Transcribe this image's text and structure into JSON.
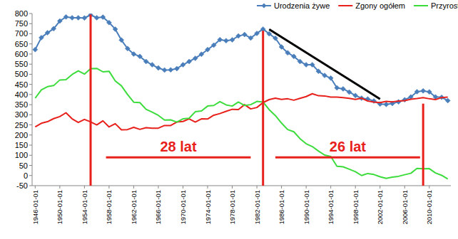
{
  "chart_data": {
    "type": "line",
    "legend": "top",
    "grid": false,
    "x": [
      1946,
      1947,
      1948,
      1949,
      1950,
      1951,
      1952,
      1953,
      1954,
      1955,
      1956,
      1957,
      1958,
      1959,
      1960,
      1961,
      1962,
      1963,
      1964,
      1965,
      1966,
      1967,
      1968,
      1969,
      1970,
      1971,
      1972,
      1973,
      1974,
      1975,
      1976,
      1977,
      1978,
      1979,
      1980,
      1981,
      1982,
      1983,
      1984,
      1985,
      1986,
      1987,
      1988,
      1989,
      1990,
      1991,
      1992,
      1993,
      1994,
      1995,
      1996,
      1997,
      1998,
      1999,
      2000,
      2001,
      2002,
      2003,
      2004,
      2005,
      2006,
      2007,
      2008,
      2009,
      2010,
      2011,
      2012,
      2013
    ],
    "xlim": [
      1945.5,
      2013.5
    ],
    "xticks": [
      {
        "value": 1946,
        "label": "1946-01-01"
      },
      {
        "value": 1950,
        "label": "1950-01-01"
      },
      {
        "value": 1954,
        "label": "1954-01-01"
      },
      {
        "value": 1958,
        "label": "1958-01-01"
      },
      {
        "value": 1962,
        "label": "1962-01-01"
      },
      {
        "value": 1966,
        "label": "1966-01-01"
      },
      {
        "value": 1970,
        "label": "1970-01-01"
      },
      {
        "value": 1974,
        "label": "1974-01-01"
      },
      {
        "value": 1978,
        "label": "1978-01-01"
      },
      {
        "value": 1982,
        "label": "1982-01-01"
      },
      {
        "value": 1986,
        "label": "1986-01-01"
      },
      {
        "value": 1990,
        "label": "1990-01-01"
      },
      {
        "value": 1994,
        "label": "1994-01-01"
      },
      {
        "value": 1998,
        "label": "1998-01-01"
      },
      {
        "value": 2002,
        "label": "2002-01-01"
      },
      {
        "value": 2006,
        "label": "2006-01-01"
      },
      {
        "value": 2010,
        "label": "2010-01-01"
      }
    ],
    "ylim": [
      -50,
      800
    ],
    "yticks": [
      -50,
      0,
      50,
      100,
      150,
      200,
      250,
      300,
      350,
      400,
      450,
      500,
      550,
      600,
      650,
      700,
      750,
      800
    ],
    "series": [
      {
        "name": "Urodzenia żywe",
        "color": "#4a7ebb",
        "marker": "diamond",
        "values": [
          622,
          681,
          705,
          725,
          763,
          783,
          779,
          779,
          778,
          793,
          779,
          782,
          755,
          723,
          669,
          627,
          600,
          588,
          563,
          547,
          531,
          521,
          522,
          528,
          547,
          563,
          579,
          599,
          622,
          644,
          671,
          666,
          670,
          689,
          696,
          679,
          702,
          723,
          700,
          678,
          635,
          606,
          588,
          563,
          547,
          547,
          515,
          494,
          481,
          433,
          428,
          412,
          395,
          382,
          378,
          368,
          353,
          351,
          356,
          364,
          374,
          388,
          414,
          418,
          413,
          388,
          386,
          370
        ]
      },
      {
        "name": "Zgony ogółem",
        "color": "#e8201c",
        "marker": "none",
        "values": [
          240,
          258,
          266,
          281,
          291,
          310,
          280,
          262,
          277,
          265,
          250,
          270,
          240,
          256,
          226,
          227,
          238,
          228,
          236,
          234,
          234,
          247,
          247,
          264,
          267,
          280,
          264,
          280,
          279,
          298,
          306,
          317,
          327,
          326,
          350,
          329,
          336,
          360,
          375,
          382,
          376,
          379,
          372,
          381,
          390,
          404,
          394,
          393,
          387,
          387,
          385,
          381,
          376,
          382,
          368,
          363,
          360,
          366,
          364,
          368,
          370,
          377,
          380,
          385,
          379,
          375,
          385,
          387
        ]
      },
      {
        "name": "Przyrost naturalny",
        "color": "#3ddc3d",
        "marker": "none",
        "values": [
          382,
          423,
          439,
          444,
          472,
          473,
          499,
          517,
          501,
          528,
          529,
          512,
          515,
          467,
          443,
          400,
          362,
          360,
          327,
          313,
          297,
          274,
          275,
          264,
          280,
          283,
          315,
          319,
          343,
          346,
          365,
          349,
          343,
          363,
          346,
          350,
          366,
          363,
          325,
          296,
          259,
          227,
          216,
          182,
          157,
          143,
          121,
          101,
          94,
          46,
          43,
          31,
          19,
          0,
          10,
          5,
          -6,
          -14,
          -8,
          -4,
          4,
          11,
          35,
          33,
          34,
          13,
          1,
          -17
        ]
      }
    ],
    "annotations": [
      {
        "type": "vline",
        "x": 1955,
        "y": [
          -50,
          795
        ],
        "color": "#e8201c"
      },
      {
        "type": "vline",
        "x": 1983,
        "y": [
          -50,
          715
        ],
        "color": "#e8201c"
      },
      {
        "type": "vline",
        "x": 2009,
        "y": [
          -50,
          355
        ],
        "color": "#e8201c"
      },
      {
        "type": "span",
        "text": "28 lat",
        "x": [
          1957.5,
          1981
        ],
        "y": 90,
        "color": "#e8201c"
      },
      {
        "type": "span",
        "text": "26 lat",
        "x": [
          1985,
          2008.5
        ],
        "y": 90,
        "color": "#e8201c"
      },
      {
        "type": "trend",
        "x": [
          1984,
          2002
        ],
        "y": [
          722,
          378
        ],
        "color": "#000000"
      }
    ]
  }
}
